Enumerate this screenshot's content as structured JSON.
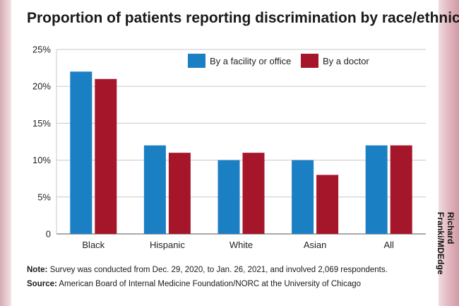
{
  "title": "Proportion of patients reporting discrimination by race/ethnicity",
  "credit": "Richard Franki/MDEdge",
  "note_label": "Note:",
  "note_text": "Survey was conducted from Dec. 29, 2020, to Jan. 26, 2021, and involved 2,069 respondents.",
  "source_label": "Source:",
  "source_text": "American Board of Internal Medicine Foundation/NORC at the University of Chicago",
  "colors": {
    "facility": "#1b7fc4",
    "doctor": "#a6162a",
    "grid": "#c8c8c8",
    "axis": "#555555",
    "text": "#222222"
  },
  "chart_data": {
    "type": "bar",
    "title": "Proportion of patients reporting discrimination by race/ethnicity",
    "categories": [
      "Black",
      "Hispanic",
      "White",
      "Asian",
      "All"
    ],
    "series": [
      {
        "name": "By a facility or office",
        "values": [
          22,
          12,
          10,
          10,
          12
        ]
      },
      {
        "name": "By a doctor",
        "values": [
          21,
          11,
          11,
          8,
          12
        ]
      }
    ],
    "ylim": [
      0,
      25
    ],
    "yticks": [
      0,
      5,
      10,
      15,
      20,
      25
    ],
    "ytick_labels": [
      "0",
      "5%",
      "10%",
      "15%",
      "20%",
      "25%"
    ],
    "grid": true,
    "legend_position": "top-right",
    "xlabel": "",
    "ylabel": ""
  }
}
